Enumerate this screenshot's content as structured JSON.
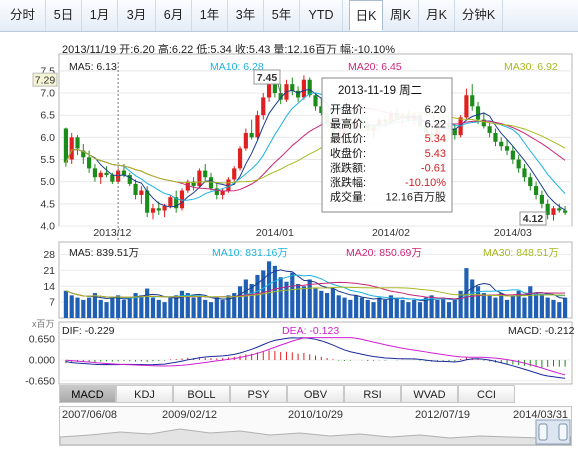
{
  "tabs": [
    "分时",
    "5日",
    "1月",
    "3月",
    "6月",
    "1年",
    "3年",
    "5年",
    "YTD",
    "日K",
    "周K",
    "月K",
    "分钟K"
  ],
  "active_tab": "日K",
  "info_line": "2013/11/19  开:6.20  高:6.22  低:5.34  收:5.43  量:12.16百万  幅:-10.10%",
  "ma_labels": {
    "ma5": "MA5: 6.13",
    "ma10": "MA10: 6.28",
    "ma20": "MA20: 6.45",
    "ma30": "MA30: 6.92"
  },
  "vol_labels": {
    "ma5": "MA5: 839.51万",
    "ma10": "MA10: 831.16万",
    "ma20": "MA20: 850.69万",
    "ma30": "MA30: 848.51万"
  },
  "macd_labels": {
    "dif": "DIF: -0.229",
    "dea": "DEA: -0.123",
    "macd": "MACD: -0.212"
  },
  "colors": {
    "ma5": "#1a3a8c",
    "ma10": "#1bb3e0",
    "ma20": "#c8267a",
    "ma30": "#a8b820",
    "up": "#e02020",
    "down": "#1a8c1a",
    "vol": "#1f5fb4"
  },
  "tooltip": {
    "date": "2013-11-19 周二",
    "rows": [
      {
        "k": "开盘价:",
        "v": "6.20"
      },
      {
        "k": "最高价:",
        "v": "6.22"
      },
      {
        "k": "最低价:",
        "v": "5.34"
      },
      {
        "k": "收盘价:",
        "v": "5.43"
      },
      {
        "k": "涨跌额:",
        "v": "-0.61"
      },
      {
        "k": "涨跌幅:",
        "v": "-10.10%"
      },
      {
        "k": "成交量:",
        "v": "12.16百万股"
      }
    ]
  },
  "price_marker": "7.29",
  "high_marker": "7.45",
  "low_marker": "4.12",
  "indicator_buttons": [
    "MACD",
    "KDJ",
    "BOLL",
    "PSY",
    "OBV",
    "RSI",
    "WVAD",
    "CCI"
  ],
  "active_indicator": "MACD",
  "timeline_labels": [
    "2007/06/08",
    "2009/02/12",
    "2010/10/29",
    "2012/07/19",
    "2014/03/31"
  ],
  "chart_data": [
    {
      "type": "candlestick",
      "y_ticks": [
        4.0,
        4.5,
        5.0,
        5.5,
        6.0,
        6.5,
        7.0,
        7.5
      ],
      "ylim": [
        4.0,
        7.7
      ],
      "x_labels": [
        "2013/12",
        "2014/01",
        "2014/02",
        "2014/03"
      ],
      "x_label_index": [
        8,
        36,
        56,
        77
      ],
      "ohlc": [
        [
          6.2,
          6.22,
          5.34,
          5.43
        ],
        [
          5.5,
          6.1,
          5.4,
          6.0
        ],
        [
          6.0,
          6.05,
          5.6,
          5.75
        ],
        [
          5.7,
          5.85,
          5.4,
          5.55
        ],
        [
          5.55,
          5.7,
          5.2,
          5.3
        ],
        [
          5.3,
          5.4,
          5.0,
          5.1
        ],
        [
          5.1,
          5.25,
          4.95,
          5.2
        ],
        [
          5.2,
          5.35,
          5.1,
          5.15
        ],
        [
          5.15,
          5.2,
          4.95,
          5.0
        ],
        [
          5.0,
          5.3,
          4.95,
          5.25
        ],
        [
          5.25,
          5.4,
          5.1,
          5.15
        ],
        [
          5.15,
          5.2,
          4.9,
          4.95
        ],
        [
          4.95,
          5.05,
          4.6,
          4.7
        ],
        [
          4.7,
          4.9,
          4.5,
          4.8
        ],
        [
          4.8,
          4.9,
          4.2,
          4.3
        ],
        [
          4.3,
          4.5,
          4.15,
          4.4
        ],
        [
          4.4,
          4.55,
          4.25,
          4.35
        ],
        [
          4.35,
          4.5,
          4.2,
          4.45
        ],
        [
          4.45,
          4.7,
          4.4,
          4.65
        ],
        [
          4.65,
          4.8,
          4.3,
          4.4
        ],
        [
          4.4,
          4.85,
          4.35,
          4.8
        ],
        [
          4.8,
          5.05,
          4.75,
          5.0
        ],
        [
          5.0,
          5.1,
          4.8,
          4.9
        ],
        [
          4.9,
          5.3,
          4.85,
          5.25
        ],
        [
          5.25,
          5.4,
          5.0,
          5.1
        ],
        [
          5.1,
          5.2,
          4.8,
          4.85
        ],
        [
          4.85,
          4.95,
          4.6,
          4.7
        ],
        [
          4.7,
          4.85,
          4.6,
          4.8
        ],
        [
          4.8,
          5.1,
          4.75,
          5.05
        ],
        [
          5.05,
          5.35,
          5.0,
          5.3
        ],
        [
          5.3,
          5.8,
          5.25,
          5.75
        ],
        [
          5.75,
          6.2,
          5.7,
          6.1
        ],
        [
          6.1,
          6.4,
          5.95,
          6.0
        ],
        [
          6.0,
          6.6,
          5.95,
          6.5
        ],
        [
          6.5,
          7.0,
          6.4,
          6.9
        ],
        [
          6.9,
          7.3,
          6.8,
          7.2
        ],
        [
          7.2,
          7.45,
          6.9,
          7.0
        ],
        [
          7.0,
          7.2,
          6.75,
          6.85
        ],
        [
          6.85,
          7.3,
          6.8,
          7.2
        ],
        [
          7.2,
          7.35,
          6.95,
          7.05
        ],
        [
          7.05,
          7.15,
          6.8,
          6.9
        ],
        [
          6.9,
          7.4,
          6.85,
          7.3
        ],
        [
          7.3,
          7.35,
          6.9,
          6.95
        ],
        [
          6.95,
          7.0,
          6.6,
          6.7
        ],
        [
          6.7,
          6.9,
          6.5,
          6.55
        ],
        [
          6.55,
          6.6,
          6.2,
          6.3
        ],
        [
          6.3,
          6.4,
          5.9,
          6.0
        ],
        [
          6.0,
          6.2,
          5.85,
          6.1
        ],
        [
          6.1,
          6.4,
          6.05,
          6.35
        ],
        [
          6.35,
          6.45,
          6.1,
          6.2
        ],
        [
          6.2,
          6.5,
          6.15,
          6.4
        ],
        [
          6.4,
          6.55,
          6.2,
          6.3
        ],
        [
          6.3,
          6.4,
          6.05,
          6.15
        ],
        [
          6.15,
          6.3,
          6.0,
          6.25
        ],
        [
          6.25,
          6.45,
          6.2,
          6.4
        ],
        [
          6.4,
          6.5,
          6.25,
          6.35
        ],
        [
          6.35,
          6.6,
          6.3,
          6.55
        ],
        [
          6.55,
          6.65,
          6.4,
          6.45
        ],
        [
          6.45,
          6.55,
          6.3,
          6.5
        ],
        [
          6.5,
          6.6,
          6.35,
          6.4
        ],
        [
          6.4,
          6.55,
          6.3,
          6.5
        ],
        [
          6.5,
          6.55,
          6.2,
          6.25
        ],
        [
          6.25,
          6.35,
          6.0,
          6.1
        ],
        [
          6.1,
          6.2,
          5.9,
          6.0
        ],
        [
          6.0,
          6.4,
          5.95,
          6.35
        ],
        [
          6.35,
          6.5,
          6.25,
          6.3
        ],
        [
          6.3,
          6.45,
          6.1,
          6.2
        ],
        [
          6.2,
          6.3,
          5.95,
          6.05
        ],
        [
          6.05,
          6.5,
          6.0,
          6.45
        ],
        [
          6.45,
          7.1,
          6.4,
          6.95
        ],
        [
          6.95,
          7.2,
          6.6,
          6.7
        ],
        [
          6.7,
          6.8,
          6.3,
          6.4
        ],
        [
          6.4,
          6.55,
          6.2,
          6.25
        ],
        [
          6.25,
          6.35,
          6.0,
          6.1
        ],
        [
          6.1,
          6.2,
          5.8,
          5.9
        ],
        [
          5.9,
          6.0,
          5.7,
          5.8
        ],
        [
          5.8,
          5.95,
          5.6,
          5.7
        ],
        [
          5.7,
          5.8,
          5.4,
          5.5
        ],
        [
          5.5,
          5.6,
          5.2,
          5.3
        ],
        [
          5.3,
          5.4,
          5.0,
          5.1
        ],
        [
          5.1,
          5.2,
          4.8,
          4.9
        ],
        [
          4.9,
          5.0,
          4.6,
          4.7
        ],
        [
          4.7,
          4.8,
          4.4,
          4.5
        ],
        [
          4.5,
          4.6,
          4.15,
          4.25
        ],
        [
          4.25,
          4.45,
          4.12,
          4.4
        ],
        [
          4.4,
          4.5,
          4.3,
          4.35
        ],
        [
          4.35,
          4.45,
          4.25,
          4.3
        ]
      ]
    },
    {
      "type": "bar",
      "name": "volume",
      "y_ticks": [
        7,
        14,
        21,
        28
      ],
      "ylim": [
        0,
        30
      ],
      "values": [
        12,
        10,
        9,
        8,
        9,
        11,
        8,
        7,
        9,
        10,
        8,
        9,
        11,
        10,
        13,
        9,
        8,
        7,
        9,
        10,
        12,
        11,
        9,
        10,
        8,
        7,
        9,
        8,
        10,
        11,
        14,
        17,
        15,
        19,
        21,
        25,
        23,
        18,
        16,
        20,
        15,
        14,
        17,
        13,
        12,
        11,
        13,
        10,
        9,
        8,
        10,
        9,
        8,
        7,
        9,
        8,
        10,
        9,
        8,
        7,
        8,
        7,
        9,
        10,
        8,
        9,
        7,
        8,
        12,
        22,
        17,
        14,
        11,
        10,
        9,
        11,
        8,
        10,
        12,
        9,
        14,
        11,
        10,
        9,
        8,
        7,
        9
      ]
    },
    {
      "type": "bar",
      "name": "MACD",
      "y_ticks": [
        0.65,
        0.0,
        -0.65
      ],
      "ylim": [
        -0.75,
        0.75
      ],
      "values": [
        -0.1,
        -0.08,
        -0.06,
        -0.05,
        -0.06,
        -0.07,
        -0.05,
        -0.04,
        -0.05,
        -0.04,
        -0.03,
        -0.04,
        -0.05,
        -0.04,
        -0.06,
        -0.04,
        -0.03,
        -0.02,
        0.02,
        0.03,
        0.05,
        0.07,
        0.06,
        0.08,
        0.07,
        0.06,
        0.05,
        0.06,
        0.08,
        0.1,
        0.14,
        0.18,
        0.2,
        0.24,
        0.28,
        0.3,
        0.28,
        0.25,
        0.26,
        0.24,
        0.2,
        0.22,
        0.18,
        0.14,
        0.1,
        0.06,
        0.02,
        -0.02,
        -0.03,
        -0.02,
        0.0,
        -0.01,
        -0.03,
        -0.02,
        -0.01,
        -0.02,
        0.0,
        -0.01,
        0.01,
        0.0,
        0.01,
        -0.02,
        -0.04,
        -0.05,
        -0.03,
        -0.02,
        -0.03,
        -0.04,
        0.03,
        0.08,
        0.06,
        0.02,
        -0.02,
        -0.05,
        -0.08,
        -0.1,
        -0.12,
        -0.14,
        -0.16,
        -0.18,
        -0.2,
        -0.22,
        -0.24,
        -0.22,
        -0.2,
        -0.21,
        -0.21
      ]
    }
  ]
}
